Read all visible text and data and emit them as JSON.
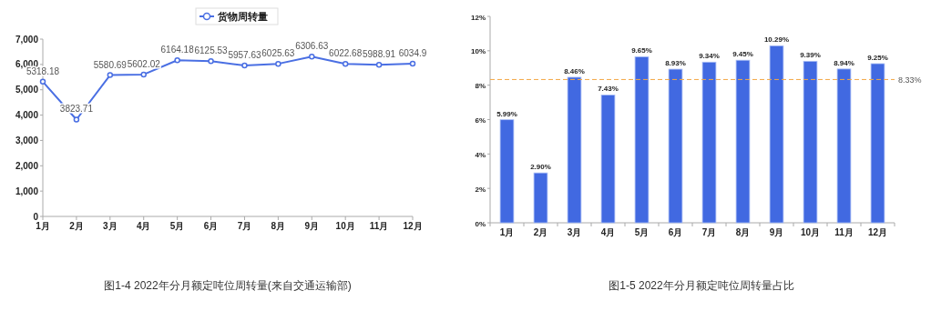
{
  "chart_data": [
    {
      "type": "line",
      "title": "图1-4  2022年分月额定吨位周转量(来自交通运输部)",
      "categories": [
        "1月",
        "2月",
        "3月",
        "4月",
        "5月",
        "6月",
        "7月",
        "8月",
        "9月",
        "10月",
        "11月",
        "12月"
      ],
      "series": [
        {
          "name": "货物周转量",
          "color": "#4a6fe3",
          "values": [
            5318.18,
            3823.71,
            5580.69,
            5602.02,
            6164.18,
            6125.53,
            5957.63,
            6025.63,
            6306.63,
            6022.68,
            5988.91,
            6034.9
          ]
        }
      ],
      "ylim": [
        0,
        7000
      ],
      "yticks": [
        0,
        {
          "value": 1000,
          "label": "1,000"
        },
        {
          "value": 2000,
          "label": "2,000"
        },
        {
          "value": 3000,
          "label": "3,000"
        },
        {
          "value": 4000,
          "label": "4,000"
        },
        {
          "value": 5000,
          "label": "5,000"
        },
        {
          "value": 6000,
          "label": "6,000"
        },
        {
          "value": 7000,
          "label": "7,000"
        }
      ],
      "data_labels": true,
      "legend": "top",
      "marker": "circle",
      "line_style": "solid",
      "grid": false
    },
    {
      "type": "bar",
      "title": "图1-5  2022年分月额定吨位周转量占比",
      "categories": [
        "1月",
        "2月",
        "3月",
        "4月",
        "5月",
        "6月",
        "7月",
        "8月",
        "9月",
        "10月",
        "11月",
        "12月"
      ],
      "values": [
        5.99,
        2.9,
        8.46,
        7.43,
        9.65,
        8.93,
        9.34,
        9.45,
        10.29,
        9.39,
        8.94,
        9.25
      ],
      "value_labels": [
        "5.99%",
        "2.90%",
        "8.46%",
        "7.43%",
        "9.65%",
        "8.93%",
        "9.34%",
        "9.45%",
        "10.29%",
        "9.39%",
        "8.94%",
        "9.25%"
      ],
      "color": "#4169e1",
      "ylim": [
        0,
        12
      ],
      "yticks": [
        {
          "value": 0,
          "label": "0%"
        },
        {
          "value": 2,
          "label": "2%"
        },
        {
          "value": 4,
          "label": "4%"
        },
        {
          "value": 6,
          "label": "6%"
        },
        {
          "value": 8,
          "label": "8%"
        },
        {
          "value": 10,
          "label": "10%"
        },
        {
          "value": 12,
          "label": "12%"
        }
      ],
      "ref_lines": [
        {
          "axis": "y",
          "value": 8.33,
          "label": "8.33%",
          "color": "#f4a742",
          "line_style": "dashed"
        }
      ],
      "grid": false
    }
  ]
}
